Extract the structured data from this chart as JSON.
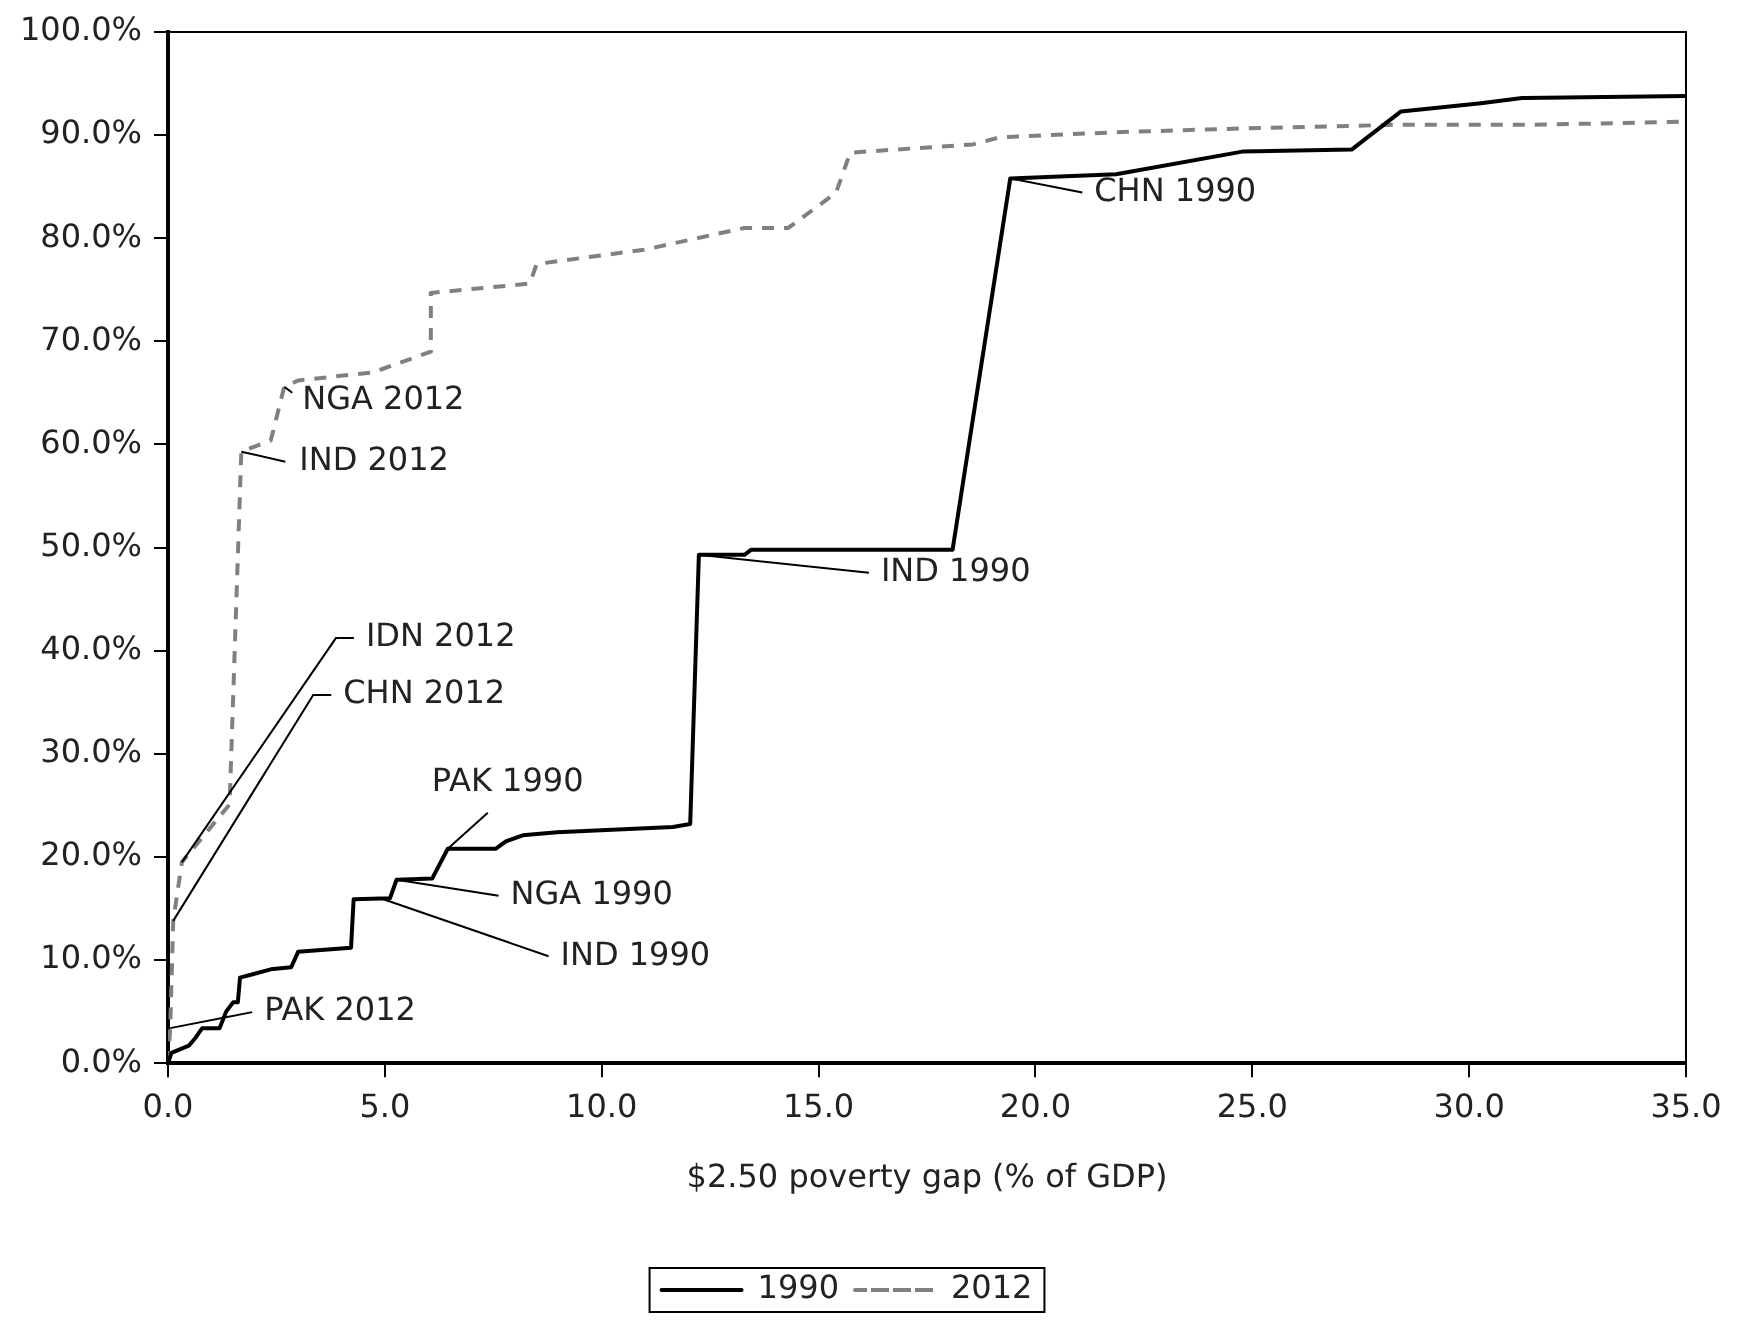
{
  "chart_data": {
    "type": "line",
    "xlabel": "$2.50 poverty gap (% of GDP)",
    "xlim": [
      0,
      35
    ],
    "ylim": [
      0,
      100
    ],
    "xticks": [
      {
        "value": 0,
        "label": "0.0"
      },
      {
        "value": 5,
        "label": "5.0"
      },
      {
        "value": 10,
        "label": "10.0"
      },
      {
        "value": 15,
        "label": "15.0"
      },
      {
        "value": 20,
        "label": "20.0"
      },
      {
        "value": 25,
        "label": "25.0"
      },
      {
        "value": 30,
        "label": "30.0"
      },
      {
        "value": 35,
        "label": "35.0"
      }
    ],
    "yticks": [
      {
        "value": 0,
        "label": "0.0%"
      },
      {
        "value": 10,
        "label": "10.0%"
      },
      {
        "value": 20,
        "label": "20.0%"
      },
      {
        "value": 30,
        "label": "30.0%"
      },
      {
        "value": 40,
        "label": "40.0%"
      },
      {
        "value": 50,
        "label": "50.0%"
      },
      {
        "value": 60,
        "label": "60.0%"
      },
      {
        "value": 70,
        "label": "70.0%"
      },
      {
        "value": 80,
        "label": "80.0%"
      },
      {
        "value": 90,
        "label": "90.0%"
      },
      {
        "value": 100,
        "label": "100.0%"
      }
    ],
    "grid": false,
    "legend": "bottom",
    "marker": "none",
    "series": [
      {
        "name": "1990",
        "color": "#000000",
        "line_style": "solid",
        "x": [
          0,
          0.08,
          0.48,
          0.64,
          0.79,
          1.19,
          1.34,
          1.5,
          1.61,
          1.66,
          2.37,
          2.84,
          3.0,
          4.22,
          4.28,
          5.12,
          5.27,
          6.09,
          6.45,
          7.56,
          7.79,
          8.18,
          8.97,
          11.64,
          12.04,
          12.24,
          13.29,
          13.45,
          18.09,
          19.42,
          21.86,
          24.77,
          27.29,
          28.43,
          30.27,
          31.22,
          35
        ],
        "values": [
          0,
          1.0,
          1.7,
          2.5,
          3.4,
          3.4,
          5.0,
          5.9,
          5.9,
          8.3,
          9.1,
          9.3,
          10.8,
          11.2,
          15.9,
          16.0,
          17.8,
          17.9,
          20.8,
          20.8,
          21.5,
          22.1,
          22.4,
          22.9,
          23.2,
          49.3,
          49.3,
          49.8,
          49.8,
          85.8,
          86.2,
          88.4,
          88.6,
          92.3,
          93.1,
          93.6,
          93.8
        ]
      },
      {
        "name": "2012",
        "color": "#808080",
        "line_style": "dashed",
        "x": [
          0,
          0.05,
          0.12,
          0.32,
          1.42,
          1.69,
          2.37,
          2.68,
          3.0,
          4.73,
          6.06,
          6.06,
          8.34,
          8.5,
          11.0,
          13.29,
          14.3,
          15.4,
          15.73,
          18.56,
          19.19,
          22.0,
          25.2,
          28.3,
          31.45,
          35
        ],
        "values": [
          0,
          3.4,
          13.8,
          19.5,
          25.1,
          59.3,
          60.4,
          65.6,
          66.2,
          67.0,
          69.0,
          74.7,
          75.6,
          77.5,
          78.9,
          81.0,
          81.0,
          84.4,
          88.3,
          89.1,
          89.8,
          90.3,
          90.7,
          91.0,
          91.0,
          91.3
        ]
      }
    ],
    "annotations": [
      {
        "text": "NGA 2012",
        "x": 2.68,
        "y": 65.6
      },
      {
        "text": "IND 2012",
        "x": 1.69,
        "y": 59.3
      },
      {
        "text": "IDN 2012",
        "x": 0.32,
        "y": 19.5
      },
      {
        "text": "CHN 2012",
        "x": 0.12,
        "y": 13.8
      },
      {
        "text": "PAK 1990",
        "x": 6.45,
        "y": 20.8
      },
      {
        "text": "NGA 1990",
        "x": 5.27,
        "y": 17.8
      },
      {
        "text": "IND 1990",
        "x": 4.9,
        "y": 16.0
      },
      {
        "text": "PAK 2012",
        "x": 0.05,
        "y": 3.4
      },
      {
        "text": "IND 1990",
        "x": 12.24,
        "y": 49.3
      },
      {
        "text": "CHN 1990",
        "x": 19.42,
        "y": 85.8
      }
    ]
  }
}
